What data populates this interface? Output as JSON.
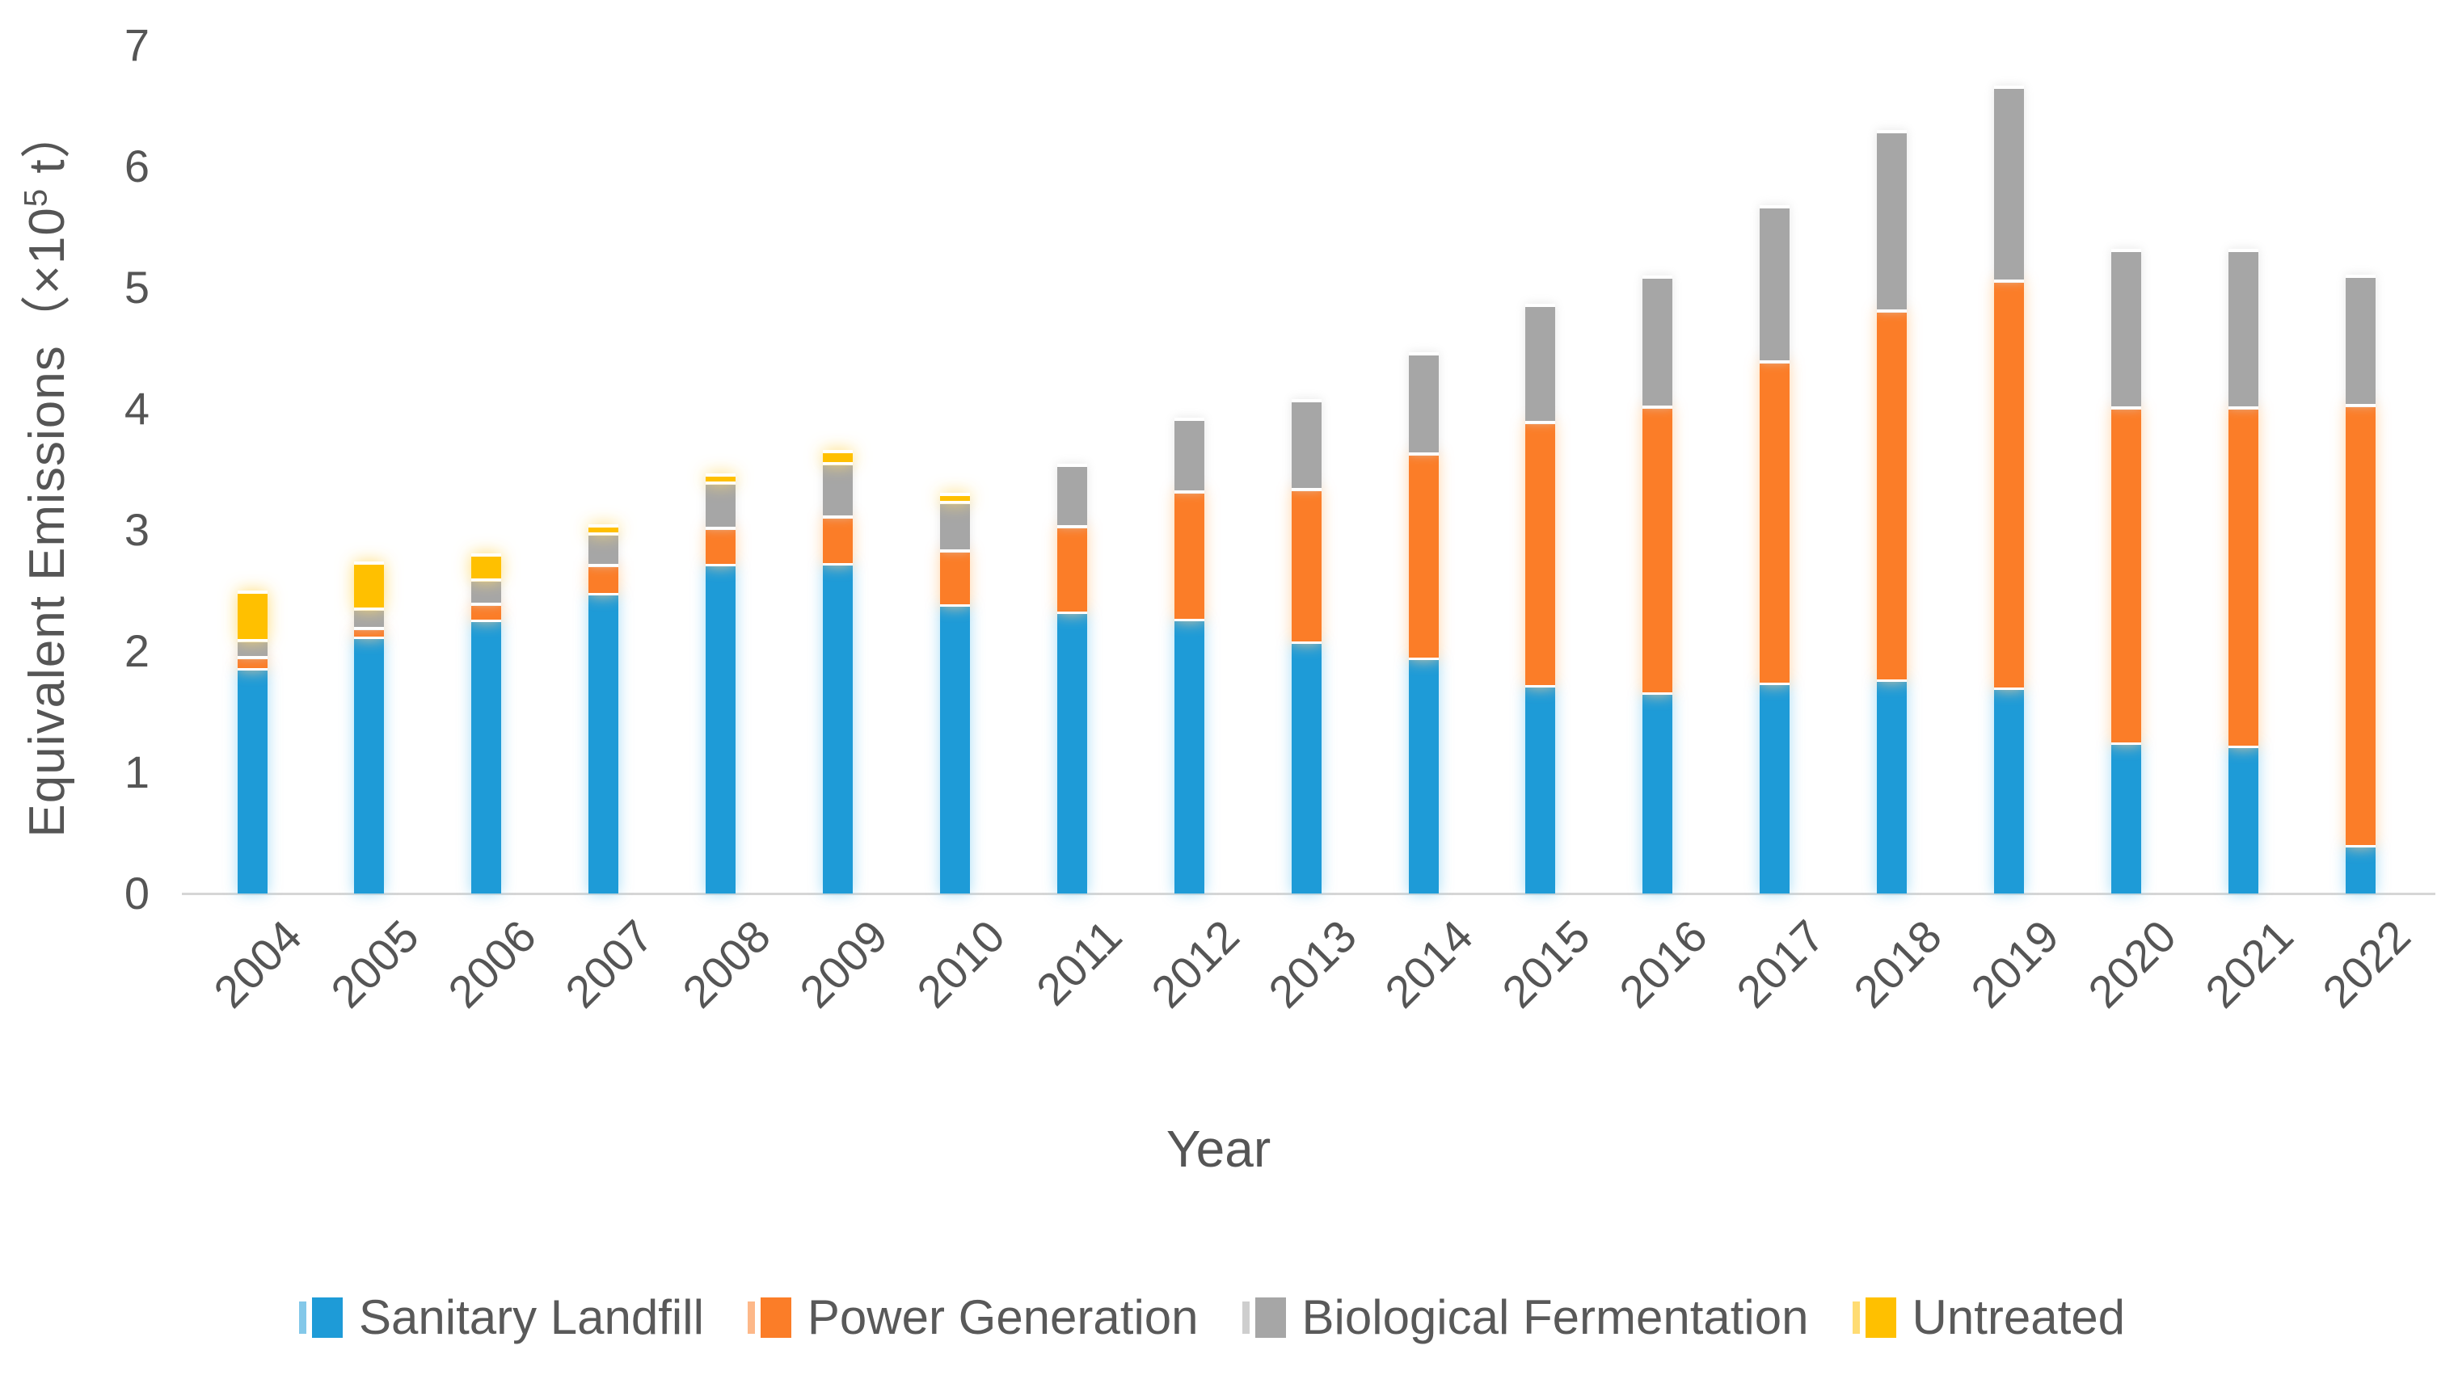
{
  "figure": {
    "y_axis": {
      "title_prefix": "Equivalent Emissions（×10",
      "title_sup": "5",
      "title_suffix": " t）",
      "ticks": [
        "0",
        "1",
        "2",
        "3",
        "4",
        "5",
        "6",
        "7"
      ]
    },
    "x_axis": {
      "title": "Year"
    }
  },
  "chart_data": {
    "type": "bar",
    "stacked": true,
    "title": "",
    "xlabel": "Year",
    "ylabel": "Equivalent Emissions（×10⁵ t）",
    "ylim": [
      0,
      7
    ],
    "grid": false,
    "legend_position": "bottom",
    "categories": [
      "2004",
      "2005",
      "2006",
      "2007",
      "2008",
      "2009",
      "2010",
      "2011",
      "2012",
      "2013",
      "2014",
      "2015",
      "2016",
      "2017",
      "2018",
      "2019",
      "2020",
      "2021",
      "2022"
    ],
    "series": [
      {
        "name": "Sanitary Landfill",
        "color": "#1E9BD7",
        "values": [
          1.86,
          2.12,
          2.26,
          2.48,
          2.72,
          2.73,
          2.39,
          2.33,
          2.27,
          2.08,
          1.95,
          1.72,
          1.66,
          1.74,
          1.77,
          1.7,
          1.25,
          1.22,
          0.4
        ]
      },
      {
        "name": "Power Generation",
        "color": "#FB7D28",
        "values": [
          0.1,
          0.08,
          0.14,
          0.24,
          0.31,
          0.39,
          0.45,
          0.71,
          1.06,
          1.27,
          1.69,
          2.18,
          2.37,
          2.66,
          3.05,
          3.37,
          2.77,
          2.8,
          3.64
        ]
      },
      {
        "name": "Biological Fermentation",
        "color": "#A6A6A6",
        "values": [
          0.14,
          0.16,
          0.2,
          0.26,
          0.37,
          0.44,
          0.4,
          0.51,
          0.6,
          0.73,
          0.83,
          0.97,
          1.07,
          1.28,
          1.48,
          1.6,
          1.3,
          1.3,
          1.07
        ]
      },
      {
        "name": "Untreated",
        "color": "#FFC000",
        "values": [
          0.4,
          0.38,
          0.21,
          0.07,
          0.07,
          0.1,
          0.07,
          0,
          0,
          0,
          0,
          0,
          0,
          0,
          0,
          0,
          0,
          0,
          0
        ]
      }
    ],
    "totals": [
      2.5,
      2.74,
      2.81,
      3.05,
      3.47,
      3.66,
      3.31,
      3.55,
      3.93,
      4.08,
      4.47,
      4.87,
      5.1,
      5.68,
      6.3,
      6.67,
      5.32,
      5.32,
      5.11
    ]
  }
}
